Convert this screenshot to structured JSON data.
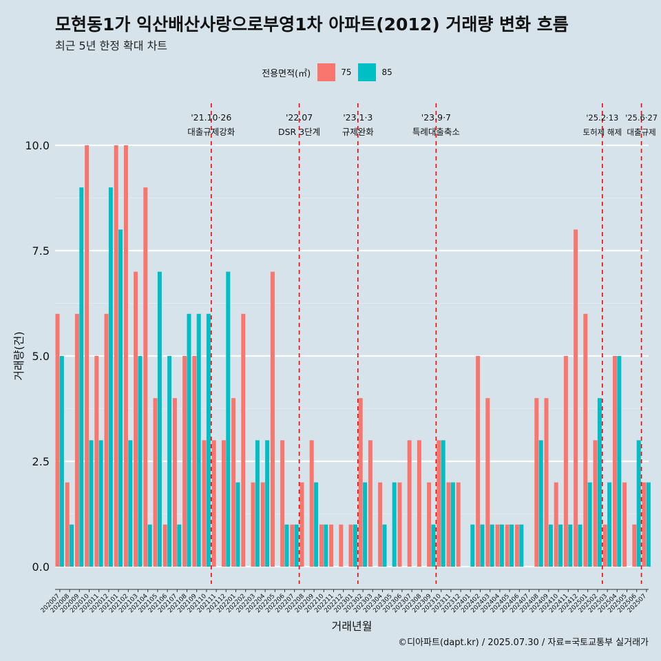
{
  "title": "모현동1가 익산배산사랑으로부영1차 아파트(2012) 거래량 변화 흐름",
  "subtitle": "최근 5년 한정 확대 차트",
  "caption": "©디아파트(dapt.kr) / 2025.07.30 / 자료=국토교통부 실거래가",
  "legend": {
    "title": "전용면적(㎡)",
    "items": [
      {
        "label": "75",
        "color": "#F8766D"
      },
      {
        "label": "85",
        "color": "#00BFC4"
      }
    ]
  },
  "chart_data": {
    "type": "bar",
    "xlabel": "거래년월",
    "ylabel": "거래량(건)",
    "ylim": [
      0,
      10.5
    ],
    "yticks": [
      "0.0",
      "2.5",
      "5.0",
      "7.5",
      "10.0"
    ],
    "ytick_values": [
      0,
      2.5,
      5,
      7.5,
      10
    ],
    "categories": [
      "202007",
      "202008",
      "202009",
      "202010",
      "202011",
      "202012",
      "202101",
      "202102",
      "202103",
      "202104",
      "202105",
      "202106",
      "202107",
      "202108",
      "202109",
      "202110",
      "202111",
      "202112",
      "202201",
      "202202",
      "202203",
      "202204",
      "202205",
      "202206",
      "202207",
      "202208",
      "202209",
      "202210",
      "202211",
      "202212",
      "202301",
      "202302",
      "202303",
      "202304",
      "202305",
      "202306",
      "202307",
      "202308",
      "202309",
      "202310",
      "202311",
      "202312",
      "202401",
      "202402",
      "202403",
      "202404",
      "202405",
      "202406",
      "202407",
      "202408",
      "202409",
      "202410",
      "202411",
      "202412",
      "202501",
      "202502",
      "202503",
      "202504",
      "202505",
      "202506",
      "202507"
    ],
    "series": [
      {
        "name": "75",
        "color": "#F8766D",
        "values": [
          6,
          2,
          6,
          10,
          5,
          6,
          10,
          10,
          7,
          9,
          4,
          1,
          4,
          5,
          5,
          3,
          3,
          3,
          4,
          6,
          2,
          2,
          7,
          3,
          1,
          2,
          3,
          1,
          1,
          1,
          1,
          4,
          3,
          2,
          0,
          2,
          3,
          3,
          2,
          3,
          2,
          2,
          0,
          5,
          4,
          1,
          1,
          1,
          0,
          4,
          4,
          2,
          5,
          8,
          6,
          3,
          1,
          5,
          2,
          1,
          2
        ]
      },
      {
        "name": "85",
        "color": "#00BFC4",
        "values": [
          5,
          1,
          9,
          3,
          3,
          9,
          8,
          3,
          5,
          1,
          7,
          5,
          1,
          6,
          6,
          6,
          0,
          7,
          2,
          0,
          3,
          3,
          0,
          1,
          1,
          0,
          2,
          1,
          0,
          0,
          1,
          2,
          0,
          1,
          2,
          0,
          0,
          0,
          1,
          3,
          2,
          0,
          1,
          1,
          1,
          1,
          1,
          1,
          0,
          3,
          1,
          1,
          1,
          1,
          2,
          4,
          2,
          5,
          0,
          3,
          2
        ]
      }
    ],
    "events": [
      {
        "after": "202110",
        "date": "'21.10·26",
        "label": "대출규제강화"
      },
      {
        "after": "202207",
        "date": "'22.07",
        "label": "DSR 3단계"
      },
      {
        "after": "202301",
        "date": "'23.1·3",
        "label": "규제완화"
      },
      {
        "after": "202309",
        "date": "'23.9·7",
        "label": "특례대출축소"
      },
      {
        "after": "202502",
        "date": "'25.2·13",
        "label": "토허제 해제"
      },
      {
        "after": "202506",
        "date": "'25.6·27",
        "label": "대출규제"
      }
    ]
  }
}
